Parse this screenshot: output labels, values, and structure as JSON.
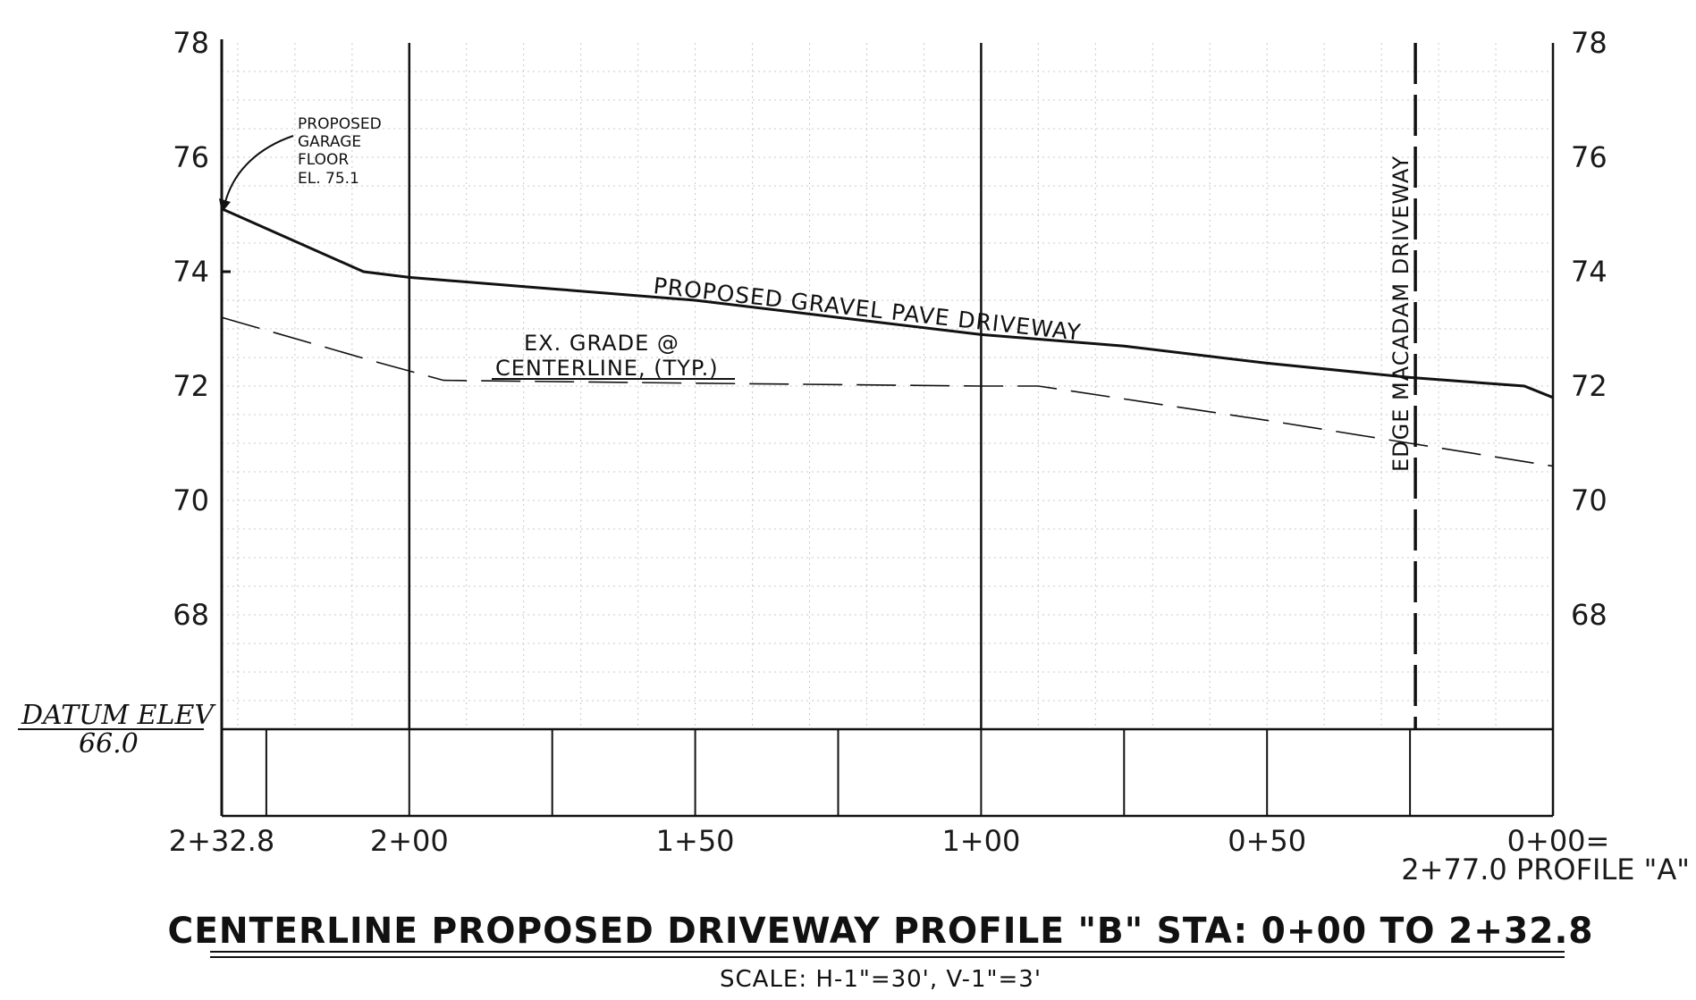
{
  "drawing": {
    "title": "CENTERLINE PROPOSED DRIVEWAY PROFILE \"B\" STA: 0+00 TO 2+32.8",
    "scale": "SCALE: H-1\"=30', V-1\"=3'",
    "datum_label": "DATUM ELEV",
    "datum_value": "66.0"
  },
  "chart_data": {
    "type": "line",
    "x_axis": {
      "range": [
        232.8,
        0
      ],
      "tick_labels": [
        {
          "station": 232.8,
          "label": "2+32.8"
        },
        {
          "station": 200,
          "label": "2+00"
        },
        {
          "station": 150,
          "label": "1+50"
        },
        {
          "station": 100,
          "label": "1+00"
        },
        {
          "station": 50,
          "label": "0+50"
        },
        {
          "station": 0,
          "label": "0+00="
        }
      ],
      "secondary_label": "2+77.0 PROFILE \"A\""
    },
    "y_axis": {
      "range": [
        66,
        78
      ],
      "left_ticks": [
        "78",
        "76",
        "74",
        "72",
        "70",
        "68"
      ],
      "right_ticks": [
        "78",
        "76",
        "74",
        "72",
        "70",
        "68"
      ]
    },
    "series": [
      {
        "name": "PROPOSED GRAVEL PAVE DRIVEWAY",
        "style": "solid",
        "points": [
          [
            232.8,
            75.1
          ],
          [
            208,
            74.0
          ],
          [
            200,
            73.9
          ],
          [
            175,
            73.7
          ],
          [
            150,
            73.5
          ],
          [
            125,
            73.2
          ],
          [
            100,
            72.9
          ],
          [
            75,
            72.7
          ],
          [
            50,
            72.4
          ],
          [
            25,
            72.15
          ],
          [
            5,
            72.0
          ],
          [
            0,
            71.8
          ]
        ]
      },
      {
        "name": "EX. GRADE @ CENTERLINE, (TYP.)",
        "style": "dashed",
        "points": [
          [
            232.8,
            73.2
          ],
          [
            205,
            72.4
          ],
          [
            194,
            72.1
          ],
          [
            150,
            72.05
          ],
          [
            100,
            72.0
          ],
          [
            90,
            72.0
          ],
          [
            50,
            71.4
          ],
          [
            25,
            71.0
          ],
          [
            0,
            70.6
          ]
        ]
      }
    ],
    "vertical_markers": [
      {
        "station": 25,
        "label": "EDGE MACADAM DRIVEWAY",
        "style": "dashed"
      }
    ],
    "annotations": {
      "garage_floor": [
        "PROPOSED",
        "GARAGE",
        "FLOOR",
        "EL. 75.1"
      ],
      "driveway_label": "PROPOSED GRAVEL PAVE DRIVEWAY",
      "grade_label_1": "EX. GRADE @",
      "grade_label_2": "CENTERLINE, (TYP.)"
    },
    "grid": true
  }
}
